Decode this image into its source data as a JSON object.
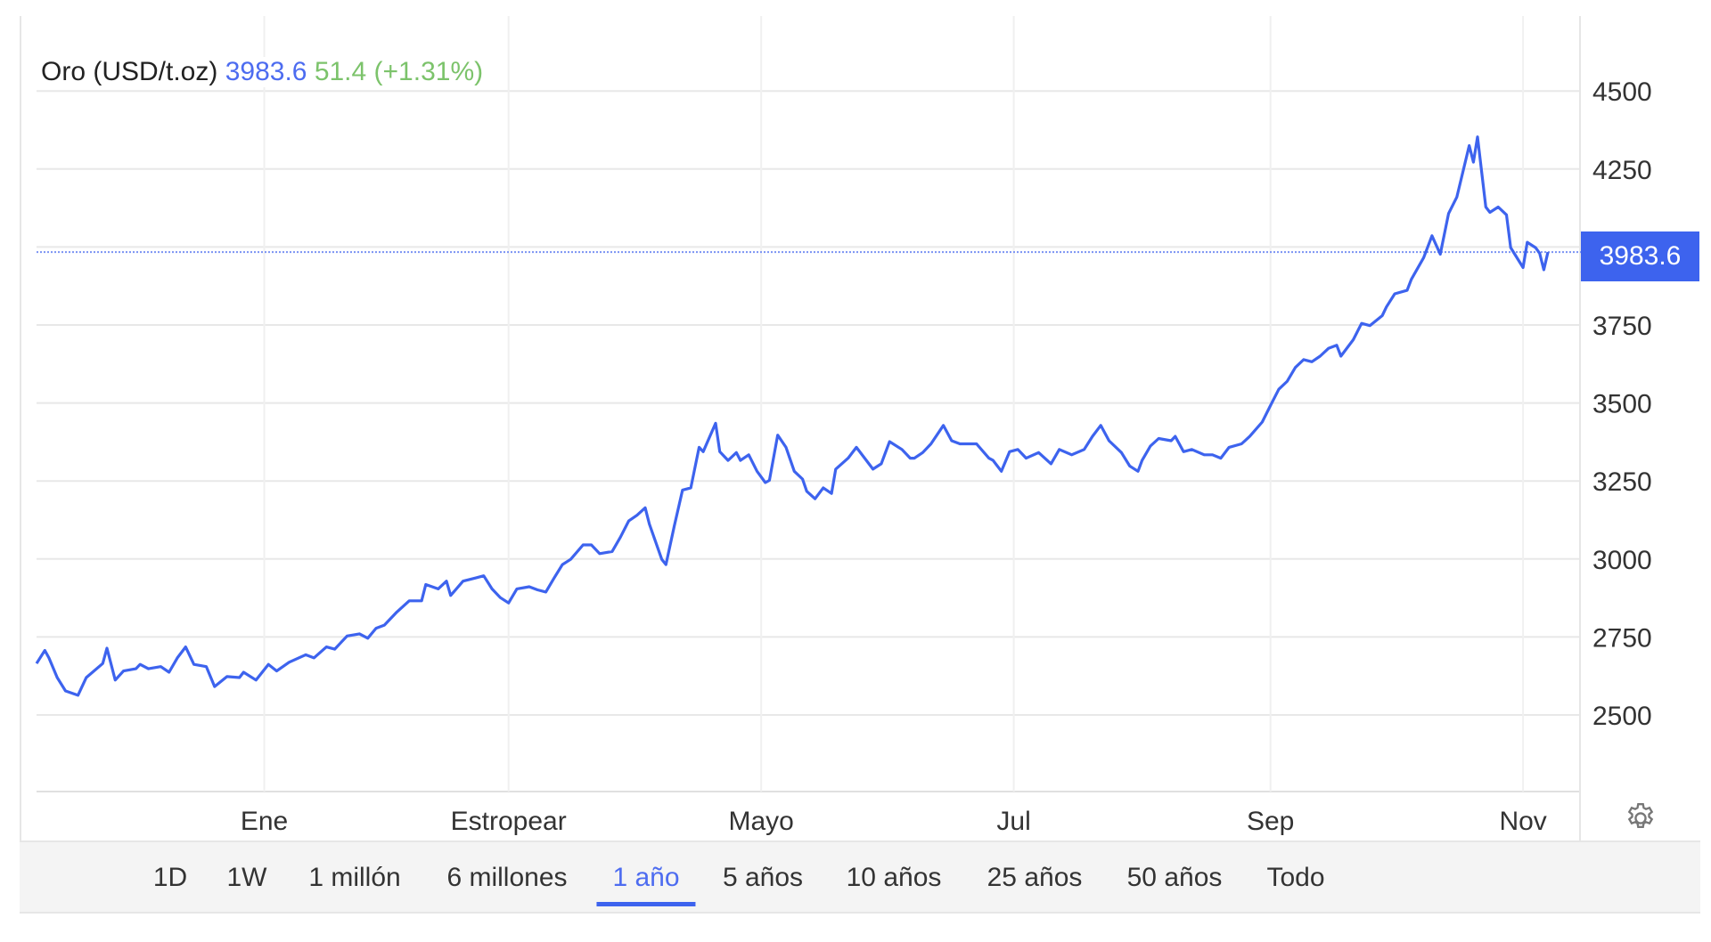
{
  "header": {
    "instrument": "Oro (USD/t.oz)",
    "price": "3983.6",
    "change": "51.4",
    "change_pct": "(+1.31%)"
  },
  "price_badge": "3983.6",
  "ranges": [
    {
      "label": "1D",
      "active": false
    },
    {
      "label": "1W",
      "active": false
    },
    {
      "label": "1 millón",
      "active": false
    },
    {
      "label": "6 millones",
      "active": false
    },
    {
      "label": "1 año",
      "active": true
    },
    {
      "label": "5 años",
      "active": false
    },
    {
      "label": "10 años",
      "active": false
    },
    {
      "label": "25 años",
      "active": false
    },
    {
      "label": "50 años",
      "active": false
    },
    {
      "label": "Todo",
      "active": false
    }
  ],
  "icons": {
    "settings": "gear-icon"
  },
  "colors": {
    "line": "#3d63ee",
    "price": "#4d6cf0",
    "change": "#7cc36b",
    "badge": "#3d63ee"
  },
  "chart_data": {
    "type": "line",
    "title": "",
    "xlabel": "",
    "ylabel": "",
    "y_axis_side": "right",
    "grid": true,
    "ylim": [
      2320,
      4560
    ],
    "xlim": [
      "2024-11-07",
      "2025-11-07"
    ],
    "yticks": [
      2500,
      2750,
      3000,
      3250,
      3500,
      3750,
      4000,
      4250,
      4500
    ],
    "ytick_labels": [
      "2500",
      "2750",
      "3000",
      "3250",
      "3500",
      "3750",
      "",
      "4250",
      "4500"
    ],
    "xticks": [
      {
        "date": "2025-01-01",
        "label": "Ene"
      },
      {
        "date": "2025-03-01",
        "label": "Estropear"
      },
      {
        "date": "2025-05-01",
        "label": "Mayo"
      },
      {
        "date": "2025-07-01",
        "label": "Jul"
      },
      {
        "date": "2025-09-01",
        "label": "Sep"
      },
      {
        "date": "2025-11-01",
        "label": "Nov"
      }
    ],
    "last_value_line": 3983.6,
    "series": [
      {
        "x": [
          "2024-11-07",
          "2024-11-09",
          "2024-11-10",
          "2024-11-12",
          "2024-11-14",
          "2024-11-17",
          "2024-11-19",
          "2024-11-23",
          "2024-11-24",
          "2024-11-26",
          "2024-11-28",
          "2024-12-01",
          "2024-12-02",
          "2024-12-04",
          "2024-12-07",
          "2024-12-09",
          "2024-12-11",
          "2024-12-13",
          "2024-12-15",
          "2024-12-18",
          "2024-12-20",
          "2024-12-23",
          "2024-12-26",
          "2024-12-27",
          "2024-12-30",
          "2025-01-02",
          "2025-01-04",
          "2025-01-07",
          "2025-01-11",
          "2025-01-13",
          "2025-01-16",
          "2025-01-18",
          "2025-01-21",
          "2025-01-24",
          "2025-01-26",
          "2025-01-28",
          "2025-01-30",
          "2025-02-02",
          "2025-02-05",
          "2025-02-08",
          "2025-02-09",
          "2025-02-12",
          "2025-02-14",
          "2025-02-15",
          "2025-02-18",
          "2025-02-21",
          "2025-02-23",
          "2025-02-25",
          "2025-02-27",
          "2025-03-01",
          "2025-03-03",
          "2025-03-06",
          "2025-03-08",
          "2025-03-10",
          "2025-03-12",
          "2025-03-14",
          "2025-03-16",
          "2025-03-19",
          "2025-03-21",
          "2025-03-23",
          "2025-03-26",
          "2025-03-28",
          "2025-03-30",
          "2025-04-01",
          "2025-04-03",
          "2025-04-04",
          "2025-04-07",
          "2025-04-08",
          "2025-04-10",
          "2025-04-12",
          "2025-04-14",
          "2025-04-16",
          "2025-04-17",
          "2025-04-20",
          "2025-04-21",
          "2025-04-23",
          "2025-04-25",
          "2025-04-26",
          "2025-04-28",
          "2025-04-30",
          "2025-05-02",
          "2025-05-03",
          "2025-05-05",
          "2025-05-07",
          "2025-05-09",
          "2025-05-11",
          "2025-05-12",
          "2025-05-14",
          "2025-05-16",
          "2025-05-18",
          "2025-05-19",
          "2025-05-22",
          "2025-05-24",
          "2025-05-26",
          "2025-05-28",
          "2025-05-30",
          "2025-06-01",
          "2025-06-04",
          "2025-06-06",
          "2025-06-07",
          "2025-06-09",
          "2025-06-11",
          "2025-06-14",
          "2025-06-16",
          "2025-06-18",
          "2025-06-22",
          "2025-06-25",
          "2025-06-26",
          "2025-06-28",
          "2025-06-30",
          "2025-07-02",
          "2025-07-04",
          "2025-07-07",
          "2025-07-10",
          "2025-07-12",
          "2025-07-15",
          "2025-07-18",
          "2025-07-20",
          "2025-07-22",
          "2025-07-24",
          "2025-07-27",
          "2025-07-29",
          "2025-07-31",
          "2025-08-01",
          "2025-08-03",
          "2025-08-05",
          "2025-08-08",
          "2025-08-09",
          "2025-08-11",
          "2025-08-13",
          "2025-08-16",
          "2025-08-18",
          "2025-08-20",
          "2025-08-22",
          "2025-08-25",
          "2025-08-27",
          "2025-08-30",
          "2025-09-01",
          "2025-09-03",
          "2025-09-05",
          "2025-09-07",
          "2025-09-09",
          "2025-09-11",
          "2025-09-13",
          "2025-09-15",
          "2025-09-17",
          "2025-09-18",
          "2025-09-21",
          "2025-09-23",
          "2025-09-25",
          "2025-09-28",
          "2025-09-29",
          "2025-10-01",
          "2025-10-04",
          "2025-10-05",
          "2025-10-08",
          "2025-10-10",
          "2025-10-12",
          "2025-10-14",
          "2025-10-16",
          "2025-10-19",
          "2025-10-20",
          "2025-10-21",
          "2025-10-23",
          "2025-10-24",
          "2025-10-26",
          "2025-10-28",
          "2025-10-29",
          "2025-11-01",
          "2025-11-02",
          "2025-11-04",
          "2025-11-05",
          "2025-11-06",
          "2025-11-07"
        ],
        "y": [
          2665,
          2707,
          2683,
          2620,
          2577,
          2563,
          2620,
          2665,
          2714,
          2612,
          2641,
          2648,
          2662,
          2648,
          2655,
          2637,
          2683,
          2718,
          2662,
          2655,
          2591,
          2623,
          2620,
          2637,
          2612,
          2662,
          2641,
          2669,
          2693,
          2683,
          2718,
          2711,
          2753,
          2760,
          2746,
          2778,
          2788,
          2830,
          2866,
          2866,
          2918,
          2904,
          2929,
          2883,
          2929,
          2939,
          2946,
          2904,
          2876,
          2859,
          2904,
          2911,
          2901,
          2894,
          2939,
          2982,
          2999,
          3045,
          3045,
          3017,
          3024,
          3070,
          3122,
          3140,
          3164,
          3112,
          2999,
          2982,
          3105,
          3221,
          3228,
          3358,
          3344,
          3435,
          3344,
          3316,
          3341,
          3316,
          3334,
          3281,
          3245,
          3252,
          3397,
          3358,
          3281,
          3256,
          3217,
          3193,
          3228,
          3210,
          3288,
          3323,
          3358,
          3323,
          3288,
          3305,
          3376,
          3351,
          3323,
          3323,
          3341,
          3369,
          3428,
          3379,
          3369,
          3369,
          3323,
          3316,
          3281,
          3344,
          3351,
          3323,
          3341,
          3305,
          3351,
          3334,
          3351,
          3393,
          3428,
          3379,
          3341,
          3298,
          3281,
          3316,
          3362,
          3386,
          3379,
          3393,
          3344,
          3351,
          3334,
          3334,
          3323,
          3358,
          3369,
          3393,
          3439,
          3492,
          3544,
          3569,
          3614,
          3639,
          3632,
          3650,
          3675,
          3685,
          3650,
          3703,
          3755,
          3748,
          3780,
          3808,
          3850,
          3861,
          3896,
          3966,
          4036,
          3977,
          4107,
          4160,
          4325,
          4272,
          4353,
          4128,
          4111,
          4128,
          4103,
          3998,
          3934,
          4015,
          3998,
          3980,
          3927,
          3983.6
        ]
      }
    ]
  }
}
